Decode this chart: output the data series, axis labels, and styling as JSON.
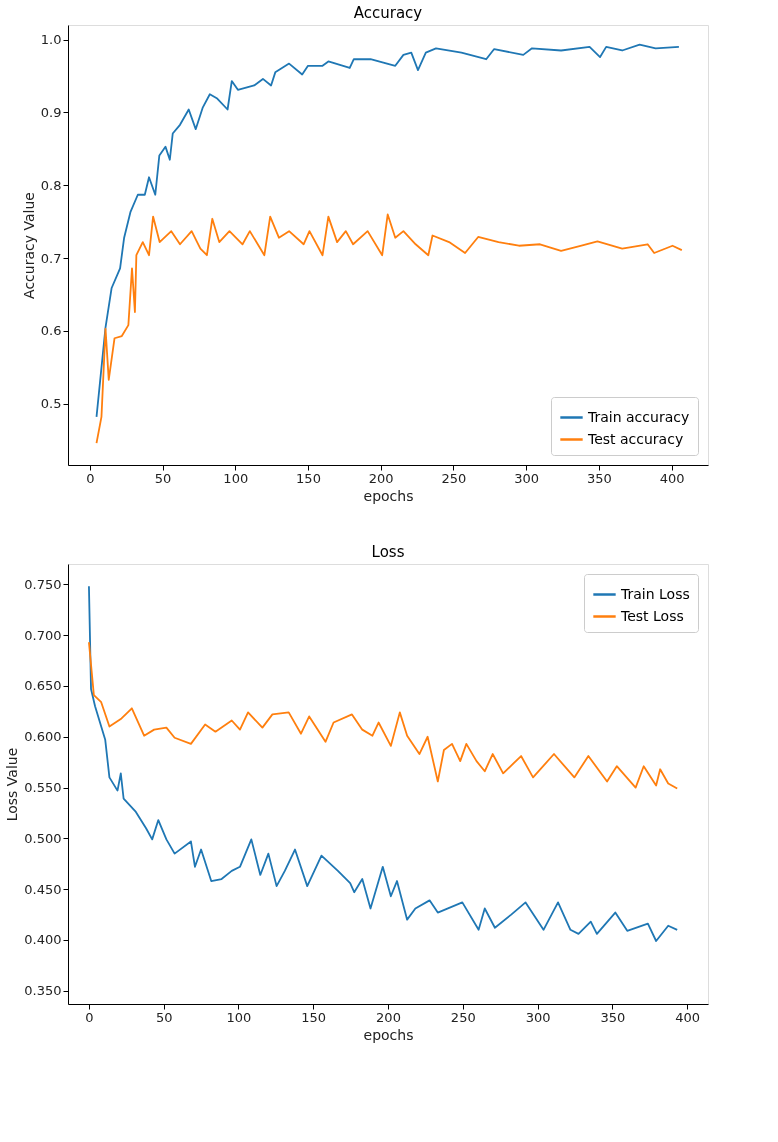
{
  "chart_data": [
    {
      "type": "line",
      "title": "Accuracy",
      "xlabel": "epochs",
      "ylabel": "Accuracy Value",
      "legend": "bottom right",
      "grid": false,
      "xlim": [
        -15,
        425
      ],
      "ylim": [
        0.416,
        1.02
      ],
      "xticks": [
        0,
        50,
        100,
        150,
        200,
        250,
        300,
        350,
        400
      ],
      "yticks": [
        {
          "value": 0.5,
          "label": "0.5"
        },
        {
          "value": 0.6,
          "label": "0.6"
        },
        {
          "value": 0.7,
          "label": "0.7"
        },
        {
          "value": 0.8,
          "label": "0.8"
        },
        {
          "value": 0.9,
          "label": "0.9"
        },
        {
          "value": 1.0,
          "label": "1.0"
        }
      ],
      "series": [
        {
          "name": "Train accuracy",
          "color": "#1f77b4",
          "x": [
            4.6,
            10.8,
            15,
            20.8,
            23.6,
            27.9,
            33,
            37.8,
            40.7,
            45,
            47.8,
            52,
            55,
            57,
            62,
            68,
            72.8,
            77.7,
            82.5,
            87.6,
            94.7,
            97.6,
            101.8,
            113,
            119,
            124.6,
            127.5,
            137,
            146,
            150,
            160,
            164,
            178.7,
            181.5,
            193,
            210,
            215.6,
            221,
            225.6,
            231,
            238,
            255.5,
            272.5,
            278,
            298,
            304,
            324,
            343.6,
            350.8,
            355,
            366,
            378,
            389,
            405
          ],
          "values": [
            0.482,
            0.605,
            0.659,
            0.686,
            0.728,
            0.763,
            0.787,
            0.787,
            0.811,
            0.787,
            0.841,
            0.853,
            0.835,
            0.871,
            0.883,
            0.904,
            0.877,
            0.907,
            0.925,
            0.919,
            0.904,
            0.943,
            0.931,
            0.937,
            0.946,
            0.937,
            0.955,
            0.967,
            0.952,
            0.964,
            0.964,
            0.97,
            0.961,
            0.973,
            0.973,
            0.964,
            0.979,
            0.982,
            0.958,
            0.982,
            0.988,
            0.982,
            0.973,
            0.987,
            0.979,
            0.988,
            0.985,
            0.99,
            0.976,
            0.99,
            0.985,
            0.993,
            0.988,
            0.99
          ]
        },
        {
          "name": "Test accuracy",
          "color": "#ff7f0e",
          "x": [
            4.6,
            8,
            10.8,
            13,
            17,
            22,
            26.5,
            29,
            31,
            32,
            36.4,
            40.7,
            43.5,
            48,
            56,
            62,
            70,
            76,
            80.5,
            84.2,
            89,
            96,
            105,
            110,
            120,
            124,
            130,
            137,
            147,
            151,
            160,
            164,
            170,
            176,
            181,
            191,
            201,
            204.8,
            210,
            215.6,
            224,
            232.7,
            235.6,
            247,
            258,
            267,
            281,
            295,
            309.5,
            324,
            338,
            349,
            366,
            383.5,
            388,
            400.6,
            407
          ],
          "values": [
            0.446,
            0.482,
            0.603,
            0.533,
            0.59,
            0.593,
            0.608,
            0.686,
            0.626,
            0.704,
            0.722,
            0.704,
            0.757,
            0.722,
            0.737,
            0.719,
            0.737,
            0.713,
            0.704,
            0.754,
            0.722,
            0.737,
            0.719,
            0.737,
            0.704,
            0.757,
            0.728,
            0.737,
            0.719,
            0.737,
            0.704,
            0.757,
            0.722,
            0.737,
            0.719,
            0.737,
            0.704,
            0.76,
            0.728,
            0.737,
            0.719,
            0.704,
            0.731,
            0.722,
            0.707,
            0.729,
            0.722,
            0.717,
            0.719,
            0.71,
            0.717,
            0.723,
            0.713,
            0.719,
            0.707,
            0.717,
            0.711
          ]
        }
      ]
    },
    {
      "type": "line",
      "title": "Loss",
      "xlabel": "epochs",
      "ylabel": "Loss Value",
      "legend": "top right",
      "grid": false,
      "xlim": [
        -14,
        414
      ],
      "ylim": [
        0.337,
        0.77
      ],
      "xticks": [
        0,
        50,
        100,
        150,
        200,
        250,
        300,
        350,
        400
      ],
      "yticks": [
        {
          "value": 0.35,
          "label": "0.350"
        },
        {
          "value": 0.4,
          "label": "0.400"
        },
        {
          "value": 0.45,
          "label": "0.450"
        },
        {
          "value": 0.5,
          "label": "0.500"
        },
        {
          "value": 0.55,
          "label": "0.550"
        },
        {
          "value": 0.6,
          "label": "0.600"
        },
        {
          "value": 0.65,
          "label": "0.650"
        },
        {
          "value": 0.7,
          "label": "0.700"
        },
        {
          "value": 0.75,
          "label": "0.750"
        }
      ],
      "series": [
        {
          "name": "Train Loss",
          "color": "#1f77b4",
          "x": [
            0,
            1.4,
            4.1,
            10.9,
            13.7,
            19.1,
            21.3,
            23.2,
            31.4,
            38.2,
            42.3,
            46.4,
            51.8,
            57.3,
            68.2,
            70.9,
            75,
            81.8,
            88.7,
            95.5,
            101,
            108.6,
            114.6,
            120,
            125.5,
            131,
            137.8,
            146,
            155.5,
            166.5,
            174.7,
            177.4,
            182.8,
            188.3,
            196.5,
            201.9,
            206,
            212.8,
            218.3,
            227.8,
            233.3,
            249.7,
            260.6,
            264.7,
            271.5,
            282.4,
            292,
            304,
            313.7,
            322,
            327.4,
            335.6,
            339.7,
            352,
            360,
            373.8,
            379.3,
            387.4,
            393.4
          ],
          "values": [
            0.748,
            0.647,
            0.63,
            0.597,
            0.56,
            0.547,
            0.564,
            0.539,
            0.526,
            0.51,
            0.499,
            0.518,
            0.499,
            0.485,
            0.497,
            0.472,
            0.489,
            0.458,
            0.46,
            0.468,
            0.472,
            0.499,
            0.464,
            0.485,
            0.453,
            0.468,
            0.489,
            0.453,
            0.483,
            0.468,
            0.456,
            0.447,
            0.46,
            0.431,
            0.472,
            0.443,
            0.458,
            0.42,
            0.431,
            0.439,
            0.427,
            0.437,
            0.41,
            0.431,
            0.412,
            0.425,
            0.437,
            0.41,
            0.437,
            0.41,
            0.406,
            0.418,
            0.406,
            0.427,
            0.409,
            0.416,
            0.399,
            0.414,
            0.41
          ]
        },
        {
          "name": "Test Loss",
          "color": "#ff7f0e",
          "x": [
            0,
            3.3,
            8.2,
            13.7,
            21.8,
            28.7,
            36.9,
            43.6,
            51.8,
            57.3,
            68.2,
            77.7,
            84.6,
            95.5,
            101,
            106.4,
            116,
            122.7,
            133.6,
            141.8,
            147.3,
            158.2,
            163.6,
            175.9,
            182.8,
            189.6,
            193.7,
            201.9,
            207.9,
            212.8,
            221,
            226.5,
            233.3,
            237.4,
            242.8,
            248.3,
            252.4,
            259.2,
            264.7,
            270,
            277,
            289,
            297,
            311,
            324.6,
            334,
            346.5,
            353,
            365.6,
            371,
            379.3,
            382,
            387.4,
            393.4
          ],
          "values": [
            0.693,
            0.641,
            0.634,
            0.61,
            0.618,
            0.628,
            0.601,
            0.607,
            0.609,
            0.599,
            0.593,
            0.612,
            0.605,
            0.616,
            0.607,
            0.624,
            0.609,
            0.622,
            0.624,
            0.603,
            0.62,
            0.595,
            0.614,
            0.622,
            0.607,
            0.601,
            0.614,
            0.591,
            0.624,
            0.601,
            0.583,
            0.6,
            0.556,
            0.587,
            0.593,
            0.576,
            0.593,
            0.576,
            0.566,
            0.583,
            0.564,
            0.581,
            0.56,
            0.583,
            0.56,
            0.581,
            0.556,
            0.571,
            0.55,
            0.571,
            0.552,
            0.568,
            0.554,
            0.549
          ]
        }
      ]
    }
  ]
}
